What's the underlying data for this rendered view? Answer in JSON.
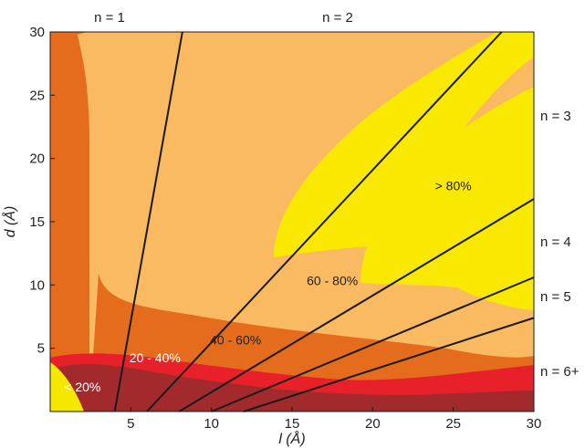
{
  "chart_data": {
    "type": "area",
    "title": "",
    "xlabel": "l (Å)",
    "ylabel": "d (Å)",
    "xlim": [
      0,
      30
    ],
    "ylim": [
      0,
      30
    ],
    "xticks": [
      5,
      10,
      15,
      20,
      25,
      30
    ],
    "yticks": [
      5,
      10,
      15,
      20,
      25,
      30
    ],
    "colors": {
      "lt20": "#f4e800",
      "20_40": "#a32a2c",
      "red_band": "#e8202a",
      "40_60": "#e46c1c",
      "60_80": "#f9ba62",
      "gt80": "#f9e800",
      "line": "#1a1a1a"
    },
    "boundaries": [
      {
        "label": "n = 1",
        "from": [
          4,
          0
        ],
        "to": [
          8.2,
          30
        ]
      },
      {
        "label": "n = 2",
        "from": [
          6,
          0
        ],
        "to": [
          28,
          30
        ]
      },
      {
        "label": "n = 3",
        "from": [
          8,
          0
        ],
        "to": [
          30,
          16.8
        ]
      },
      {
        "label": "n = 4",
        "from": [
          10,
          0
        ],
        "to": [
          30,
          10.6
        ]
      },
      {
        "label": "n = 5",
        "from": [
          12,
          0
        ],
        "to": [
          30,
          7.4
        ]
      }
    ],
    "n_labels": [
      "n = 1",
      "n = 2",
      "n = 3",
      "n = 4",
      "n = 5",
      "n = 6+"
    ],
    "regions": [
      {
        "label": "< 20%",
        "x": 2.0,
        "y": 1.6
      },
      {
        "label": "20 - 40%",
        "x": 6.5,
        "y": 3.9
      },
      {
        "label": "40 - 60%",
        "x": 11.5,
        "y": 5.3
      },
      {
        "label": "60 - 80%",
        "x": 17.5,
        "y": 10.0
      },
      {
        "label": "> 80%",
        "x": 25.0,
        "y": 17.5
      }
    ]
  }
}
